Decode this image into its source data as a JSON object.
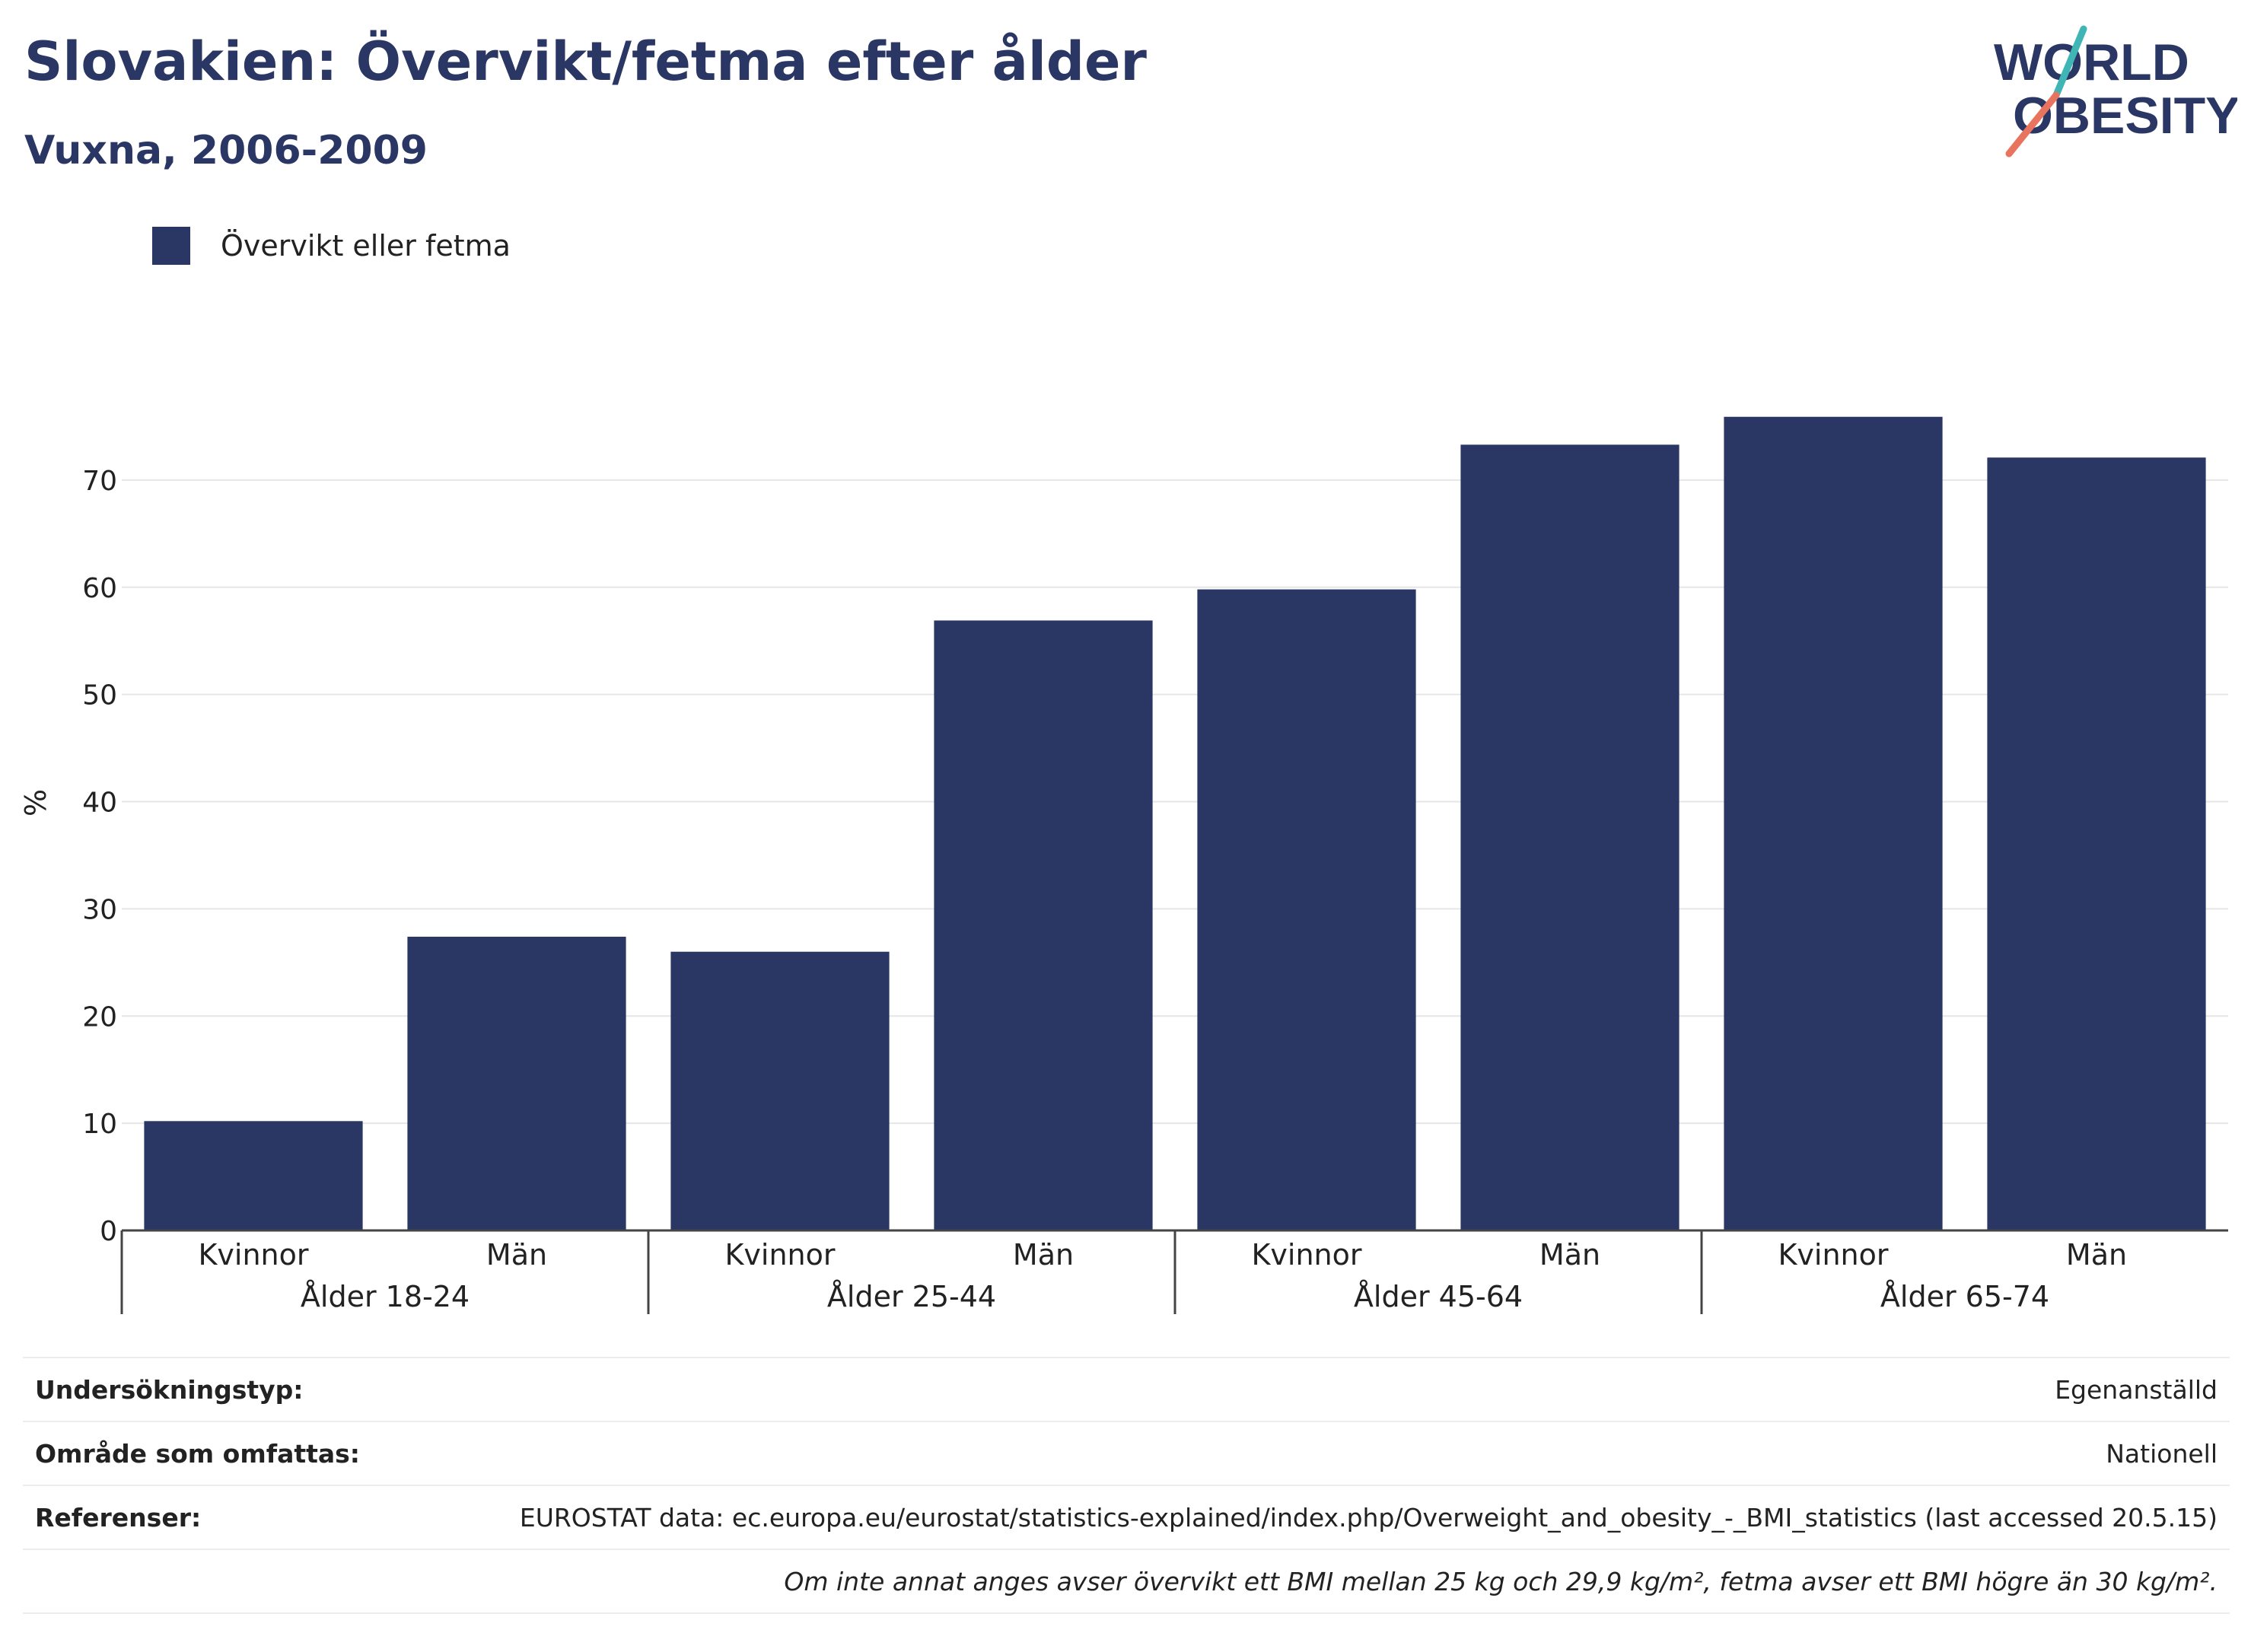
{
  "header": {
    "title": "Slovakien: Övervikt/fetma efter ålder",
    "subtitle": "Vuxna, 2006-2009"
  },
  "logo": {
    "line1": "WORLD",
    "line2": "OBESITY"
  },
  "colors": {
    "bar": "#2a3663",
    "accent_teal": "#3fb5b5",
    "accent_coral": "#e8735f"
  },
  "chart_data": {
    "type": "bar",
    "ylabel": "%",
    "ylim": [
      0,
      80
    ],
    "yticks": [
      0,
      10,
      20,
      30,
      40,
      50,
      60,
      70
    ],
    "grid": true,
    "legend": {
      "position": "top-left",
      "label": "Övervikt eller fetma"
    },
    "groups": [
      {
        "label": "Ålder 18-24",
        "categories": [
          "Kvinnor",
          "Män"
        ],
        "values": [
          10.2,
          27.4
        ]
      },
      {
        "label": "Ålder 25-44",
        "categories": [
          "Kvinnor",
          "Män"
        ],
        "values": [
          26.0,
          56.9
        ]
      },
      {
        "label": "Ålder 45-64",
        "categories": [
          "Kvinnor",
          "Män"
        ],
        "values": [
          59.8,
          73.3
        ]
      },
      {
        "label": "Ålder 65-74",
        "categories": [
          "Kvinnor",
          "Män"
        ],
        "values": [
          75.9,
          72.1
        ]
      }
    ]
  },
  "info": {
    "survey_type_label": "Undersökningstyp:",
    "survey_type_value": "Egenanställd",
    "area_label": "Område som omfattas:",
    "area_value": "Nationell",
    "refs_label": "Referenser:",
    "refs_value": "EUROSTAT data: ec.europa.eu/eurostat/statistics-explained/index.php/Overweight_and_obesity_-_BMI_statistics (last accessed 20.5.15)",
    "note": "Om inte annat anges avser övervikt ett BMI mellan 25 kg och 29,9 kg/m², fetma avser ett BMI högre än 30 kg/m²."
  }
}
